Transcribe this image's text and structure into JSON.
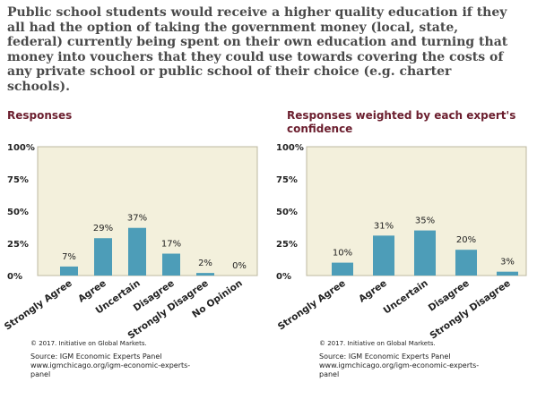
{
  "question": "Public school students would receive a higher quality education if they all had the option of taking the government money (local, state, federal) currently being spent on their own education and turning that money into vouchers that they could use towards covering the costs of any private school or public school of their choice (e.g. charter schools).",
  "colors": {
    "bar": "#4d9db8",
    "plot_background": "#f3f0dc",
    "title": "#6b1e2e",
    "text": "#222222"
  },
  "chart_data": [
    {
      "type": "bar",
      "title": "Responses",
      "categories": [
        "Strongly Agree",
        "Agree",
        "Uncertain",
        "Disagree",
        "Strongly Disagree",
        "No Opinion"
      ],
      "values": [
        7,
        29,
        37,
        17,
        2,
        0
      ],
      "value_labels": [
        "7%",
        "29%",
        "37%",
        "17%",
        "2%",
        "0%"
      ],
      "ylim": [
        0,
        100
      ],
      "yticks": [
        "0%",
        "25%",
        "50%",
        "75%",
        "100%"
      ],
      "grid": false,
      "copyright": "© 2017. Initiative on Global Markets.",
      "source_lines": [
        "Source: IGM Economic Experts Panel",
        "www.igmchicago.org/igm-economic-experts-",
        "panel"
      ]
    },
    {
      "type": "bar",
      "title": "Responses weighted by each expert's confidence",
      "title_lines": [
        "Responses weighted by each expert's",
        "confidence"
      ],
      "categories": [
        "Strongly Agree",
        "Agree",
        "Uncertain",
        "Disagree",
        "Strongly Disagree"
      ],
      "values": [
        10,
        31,
        35,
        20,
        3
      ],
      "value_labels": [
        "10%",
        "31%",
        "35%",
        "20%",
        "3%"
      ],
      "ylim": [
        0,
        100
      ],
      "yticks": [
        "0%",
        "25%",
        "50%",
        "75%",
        "100%"
      ],
      "grid": false,
      "copyright": "© 2017. Initiative on Global Markets.",
      "source_lines": [
        "Source: IGM Economic Experts Panel",
        "www.igmchicago.org/igm-economic-experts-",
        "panel"
      ]
    }
  ]
}
